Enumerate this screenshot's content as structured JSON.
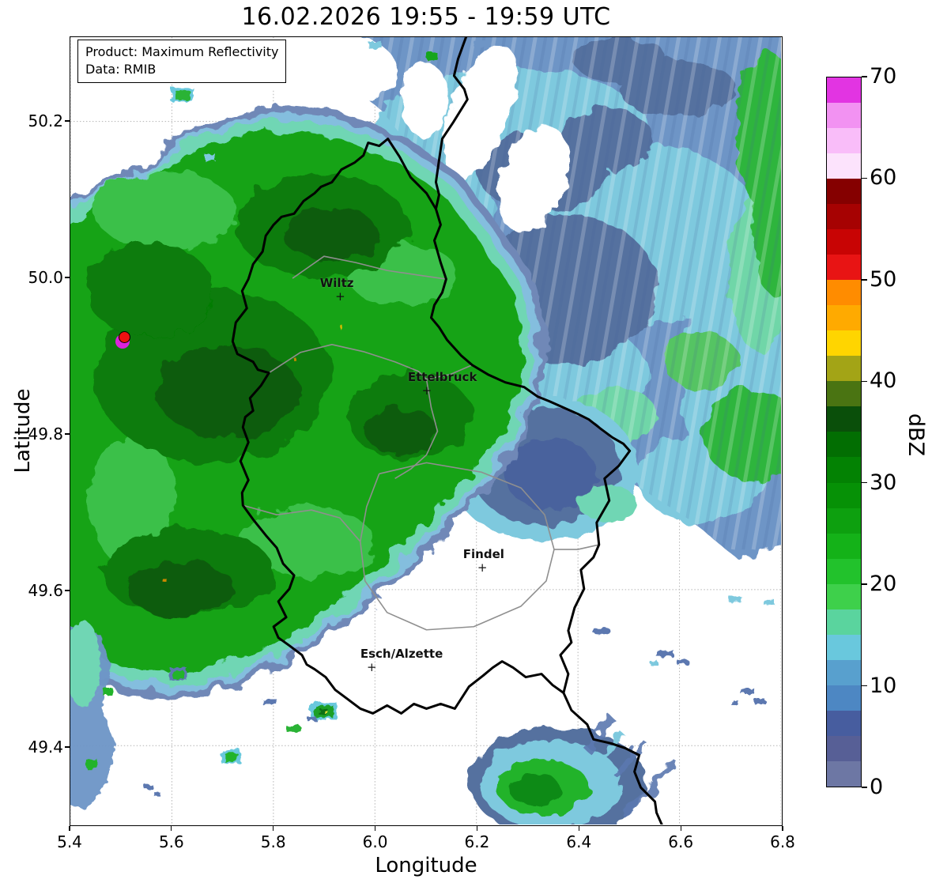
{
  "title": "16.02.2026 19:55 - 19:59 UTC",
  "info_box": {
    "line1": "Product: Maximum Reflectivity",
    "line2": "Data: RMIB"
  },
  "axes": {
    "xlabel": "Longitude",
    "ylabel": "Latitude",
    "x_ticks": [
      "5.4",
      "5.6",
      "5.8",
      "6.0",
      "6.2",
      "6.4",
      "6.6",
      "6.8"
    ],
    "y_ticks": [
      "50.2",
      "50.0",
      "49.8",
      "49.6",
      "49.4"
    ],
    "x_extent": [
      5.4,
      6.8
    ],
    "y_extent": [
      49.299,
      50.308
    ]
  },
  "colorbar": {
    "label": "dBZ",
    "tick_labels": [
      "0",
      "10",
      "20",
      "30",
      "40",
      "50",
      "60",
      "70"
    ],
    "min": 0,
    "max": 70,
    "segment_step_dbz": 2.5,
    "colors_bottom_to_top": [
      "#6d77a4",
      "#575f96",
      "#475d9f",
      "#4d87c3",
      "#58a0ce",
      "#69c8dd",
      "#5ad49e",
      "#3ed04b",
      "#22c22c",
      "#14b218",
      "#0da00f",
      "#069106",
      "#038203",
      "#026e02",
      "#0a4f0a",
      "#4a7412",
      "#a3a416",
      "#ffd500",
      "#ffaa00",
      "#ff8c00",
      "#e81414",
      "#c80404",
      "#a60202",
      "#850000",
      "#fce3fc",
      "#f9bdf9",
      "#f292f2",
      "#e234e2"
    ]
  },
  "cities": [
    {
      "name": "Wiltz",
      "lon": 5.931,
      "lat": 49.975,
      "label_dx": -4
    },
    {
      "name": "Ettelbruck",
      "lon": 6.101,
      "lat": 49.855,
      "label_dx": 20
    },
    {
      "name": "Findel",
      "lon": 6.21,
      "lat": 49.628,
      "label_dx": 2
    },
    {
      "name": "Esch/Alzette",
      "lon": 5.993,
      "lat": 49.501,
      "label_dx": 38
    }
  ],
  "event_marker": {
    "lon": 5.509,
    "lat": 49.923,
    "outer_color": "#dd22dd",
    "inner_color": "#ee1111"
  },
  "map_style": {
    "country_border_color": "#000000",
    "district_border_color": "#8f8f8f",
    "grid_color": "#b3b3b3"
  },
  "radar_field_summary": {
    "type": "radar-reflectivity-map",
    "regions": [
      {
        "area": "west and center (into western Luxembourg)",
        "character": "widespread stratiform rain shield",
        "dbz_range": "15-38"
      },
      {
        "area": "northeast quadrant",
        "character": "streaky light precipitation, blue/cyan",
        "dbz_range": "0-18"
      },
      {
        "area": "east of Luxembourg border",
        "character": "light rain with darker 0-8 dBZ patches",
        "dbz_range": "0-15"
      },
      {
        "area": "south of Luxembourg city",
        "character": "mostly echo-free with isolated small cells",
        "dbz_range": "0-15"
      },
      {
        "area": "isolated cell near 6.33E 49.33N",
        "character": "small convective cell",
        "dbz_range": "10-30"
      }
    ]
  }
}
